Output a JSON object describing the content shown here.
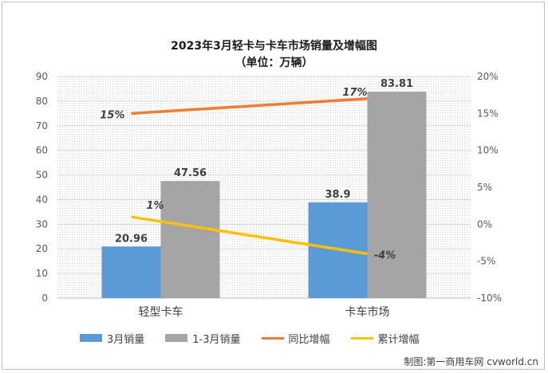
{
  "chart_data": {
    "type": "bar",
    "title": "2023年3月轻卡与卡车市场销量及增幅图",
    "subtitle": "（单位：万辆）",
    "categories": [
      "轻型卡车",
      "卡车市场"
    ],
    "bar_series": [
      {
        "name": "3月销量",
        "values": [
          20.96,
          38.9
        ],
        "labels": [
          "20.96",
          "38.9"
        ],
        "color": "#5b9bd5"
      },
      {
        "name": "1-3月销量",
        "values": [
          47.56,
          83.81
        ],
        "labels": [
          "47.56",
          "83.81"
        ],
        "color": "#a5a5a5"
      }
    ],
    "line_series": [
      {
        "name": "同比增幅",
        "values": [
          15,
          17
        ],
        "labels": [
          "15%",
          "17%"
        ],
        "color": "#ed7d31"
      },
      {
        "name": "累计增幅",
        "values": [
          1,
          -4
        ],
        "labels": [
          "1%",
          "-4%"
        ],
        "color": "#ffc000"
      }
    ],
    "y_left": {
      "min": 0,
      "max": 90,
      "ticks": [
        "0",
        "10",
        "20",
        "30",
        "40",
        "50",
        "60",
        "70",
        "80",
        "90"
      ]
    },
    "y_right": {
      "min": -10,
      "max": 20,
      "ticks": [
        "-10%",
        "-5%",
        "0%",
        "5%",
        "10%",
        "15%",
        "20%"
      ]
    },
    "grid": true,
    "legend_position": "bottom"
  },
  "credit": "制图:第一商用车网 cvworld.cn"
}
